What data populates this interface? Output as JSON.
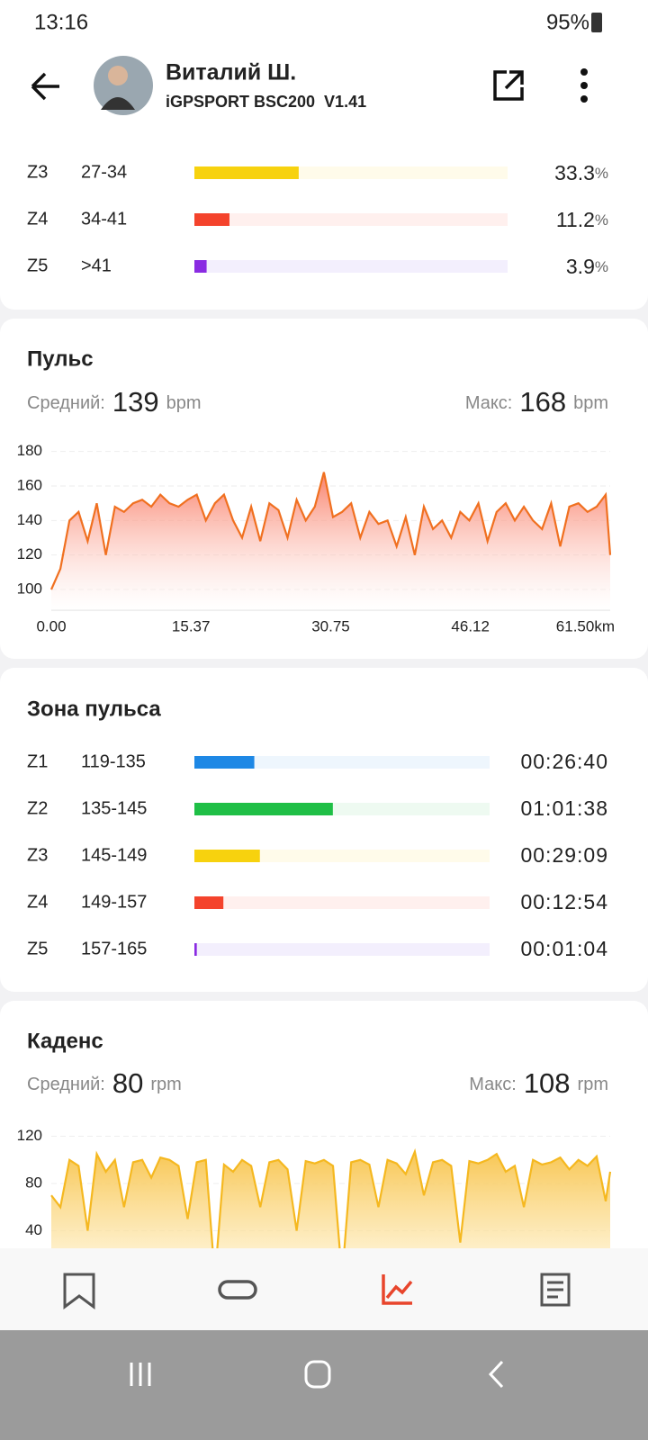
{
  "status_bar": {
    "time": "13:16",
    "battery": "95%"
  },
  "header": {
    "name": "Виталий Ш.",
    "device": "iGPSPORT BSC200  V1.41"
  },
  "speed_zones": {
    "unit": "%",
    "rows": [
      {
        "zone": "Z3",
        "range": "27-34",
        "value": 33.3,
        "color": "#f7d20e",
        "track": "#fffbea"
      },
      {
        "zone": "Z4",
        "range": "34-41",
        "value": 11.2,
        "color": "#f4432c",
        "track": "#fff0ee"
      },
      {
        "zone": "Z5",
        "range": ">41",
        "value": 3.9,
        "color": "#8a2be2",
        "track": "#f3effd"
      }
    ]
  },
  "heart_rate": {
    "title": "Пульс",
    "avg_label": "Средний:",
    "avg": 139,
    "max_label": "Макс:",
    "max": 168,
    "unit": "bpm"
  },
  "heart_zones": {
    "title": "Зона пульса",
    "rows": [
      {
        "zone": "Z1",
        "range": "119-135",
        "value": 1600,
        "value_label": "00:26:40",
        "color": "#1e88e5",
        "track": "#eef6fd"
      },
      {
        "zone": "Z2",
        "range": "135-145",
        "value": 3698,
        "value_label": "01:01:38",
        "color": "#1fbf46",
        "track": "#eefaf1"
      },
      {
        "zone": "Z3",
        "range": "145-149",
        "value": 1749,
        "value_label": "00:29:09",
        "color": "#f7d20e",
        "track": "#fffbea"
      },
      {
        "zone": "Z4",
        "range": "149-157",
        "value": 774,
        "value_label": "00:12:54",
        "color": "#f4432c",
        "track": "#fff0ee"
      },
      {
        "zone": "Z5",
        "range": "157-165",
        "value": 64,
        "value_label": "00:01:04",
        "color": "#8a2be2",
        "track": "#f3effd"
      }
    ]
  },
  "cadence": {
    "title": "Каденс",
    "avg_label": "Средний:",
    "avg": 80,
    "max_label": "Макс:",
    "max": 108,
    "unit": "rpm"
  },
  "chart_data": [
    {
      "type": "area",
      "color": "#f07020",
      "x": [
        0,
        1,
        2,
        3,
        4,
        5,
        6,
        7,
        8,
        9,
        10,
        11,
        12,
        13,
        14,
        15,
        16,
        17,
        18,
        19,
        20,
        21,
        22,
        23,
        24,
        25,
        26,
        27,
        28,
        29,
        30,
        31,
        32,
        33,
        34,
        35,
        36,
        37,
        38,
        39,
        40,
        41,
        42,
        43,
        44,
        45,
        46,
        47,
        48,
        49,
        50,
        51,
        52,
        53,
        54,
        55,
        56,
        57,
        58,
        59,
        60,
        61,
        61.5
      ],
      "values": [
        100,
        112,
        140,
        145,
        128,
        150,
        120,
        148,
        145,
        150,
        152,
        148,
        155,
        150,
        148,
        152,
        155,
        140,
        150,
        155,
        140,
        130,
        148,
        128,
        150,
        146,
        130,
        152,
        140,
        148,
        168,
        142,
        145,
        150,
        130,
        145,
        138,
        140,
        125,
        142,
        120,
        148,
        135,
        140,
        130,
        145,
        140,
        150,
        128,
        145,
        150,
        140,
        148,
        140,
        135,
        150,
        125,
        148,
        150,
        145,
        148,
        155,
        120
      ],
      "xlim": [
        0,
        61.5
      ],
      "xticks": [
        {
          "value": 0,
          "label": "0.00"
        },
        15.37,
        30.75,
        46.12,
        {
          "value": 61.5,
          "label": "61.50km"
        }
      ],
      "ylim": [
        88,
        184
      ],
      "yticks": [
        100,
        120,
        140,
        160,
        180
      ],
      "grid": true
    },
    {
      "type": "area",
      "color": "#f5b820",
      "x": [
        0,
        1,
        2,
        3,
        4,
        5,
        6,
        7,
        8,
        9,
        10,
        11,
        12,
        13,
        14,
        15,
        16,
        17,
        18,
        19,
        20,
        21,
        22,
        23,
        24,
        25,
        26,
        27,
        28,
        29,
        30,
        31,
        32,
        33,
        34,
        35,
        36,
        37,
        38,
        39,
        40,
        41,
        42,
        43,
        44,
        45,
        46,
        47,
        48,
        49,
        50,
        51,
        52,
        53,
        54,
        55,
        56,
        57,
        58,
        59,
        60,
        61,
        61.5
      ],
      "values": [
        70,
        60,
        100,
        95,
        40,
        105,
        90,
        100,
        60,
        98,
        100,
        85,
        102,
        100,
        95,
        50,
        98,
        100,
        0,
        96,
        90,
        100,
        95,
        60,
        98,
        100,
        92,
        40,
        99,
        97,
        100,
        95,
        0,
        98,
        100,
        96,
        60,
        100,
        97,
        88,
        107,
        70,
        98,
        100,
        95,
        30,
        99,
        97,
        100,
        105,
        90,
        95,
        60,
        100,
        96,
        98,
        102,
        92,
        100,
        95,
        103,
        65,
        90
      ],
      "xlim": [
        0,
        61.5
      ],
      "ylim": [
        0,
        125
      ],
      "yticks": [
        40,
        80,
        120
      ],
      "grid": true
    }
  ]
}
